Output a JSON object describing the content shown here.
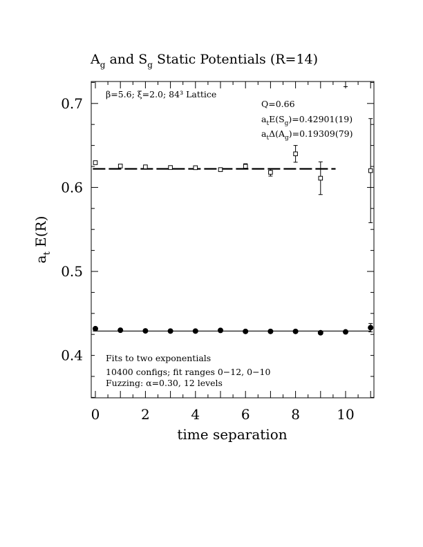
{
  "chart_data": {
    "type": "scatter",
    "title": {
      "main": "A and S Static Potentials (R=14)",
      "sub_a": "g",
      "sub_s": "g",
      "part_a": "A",
      "part_and_s": " and S",
      "part_rest": " Static Potentials (R=14)"
    },
    "xlabel": "time separation",
    "ylabel": {
      "main": "a",
      "sub": "t",
      "rest": " E(R)"
    },
    "xlim": [
      -0.15,
      11.15
    ],
    "ylim": [
      0.35,
      0.725
    ],
    "x_ticks": [
      0,
      2,
      4,
      6,
      8,
      10
    ],
    "x_tick_labels": [
      "0",
      "2",
      "4",
      "6",
      "8",
      "10"
    ],
    "y_ticks": [
      0.4,
      0.5,
      0.6,
      0.7
    ],
    "y_tick_labels": [
      "0.4",
      "0.5",
      "0.6",
      "0.7"
    ],
    "annotations": {
      "lattice": "β=5.6; ξ=2.0; 84³ Lattice",
      "q": "Q=0.66",
      "fit_s": {
        "a": "a",
        "sub": "t",
        "mid": "E(S",
        "sub2": "g",
        "end": ")=0.42901(19)"
      },
      "fit_a": {
        "a": "a",
        "sub": "t",
        "mid": "Δ(A",
        "sub2": "g",
        "end": ")=0.19309(79)"
      },
      "fits": "Fits to two exponentials",
      "configs": "10400 configs; fit ranges 0−12, 0−10",
      "fuzzing": "Fuzzing: α=0.30, 12 levels"
    },
    "series": [
      {
        "marker": "open-square",
        "x": [
          0,
          1,
          2,
          3,
          4,
          5,
          6,
          7,
          8,
          9,
          11
        ],
        "y": [
          0.6295,
          0.6255,
          0.6245,
          0.6237,
          0.6235,
          0.6212,
          0.6252,
          0.618,
          0.64,
          0.611,
          0.62
        ],
        "err": [
          0.0015,
          0.0018,
          0.0015,
          0.0018,
          0.002,
          0.0022,
          0.003,
          0.0045,
          0.01,
          0.0195,
          0.062
        ]
      },
      {
        "marker": "filled-circle",
        "x": [
          0,
          1,
          2,
          3,
          4,
          5,
          6,
          7,
          8,
          9,
          10,
          11
        ],
        "y": [
          0.4318,
          0.43,
          0.4292,
          0.429,
          0.429,
          0.4298,
          0.4286,
          0.4286,
          0.4286,
          0.427,
          0.428,
          0.433
        ],
        "err": [
          0.0008,
          0.0008,
          0.0008,
          0.0008,
          0.0008,
          0.0008,
          0.0008,
          0.001,
          0.001,
          0.0012,
          0.002,
          0.005
        ]
      }
    ],
    "fit_lines": [
      {
        "style": "dashed",
        "x_range": [
          -0.1,
          9.6
        ],
        "y": 0.6221
      },
      {
        "style": "solid",
        "x_range": [
          -0.1,
          11.0
        ],
        "y": 0.42901
      }
    ],
    "extra_points": [
      {
        "x": 10,
        "y": 0.72,
        "err": 0.005,
        "note": "off-scale partial error bar at top"
      }
    ]
  }
}
